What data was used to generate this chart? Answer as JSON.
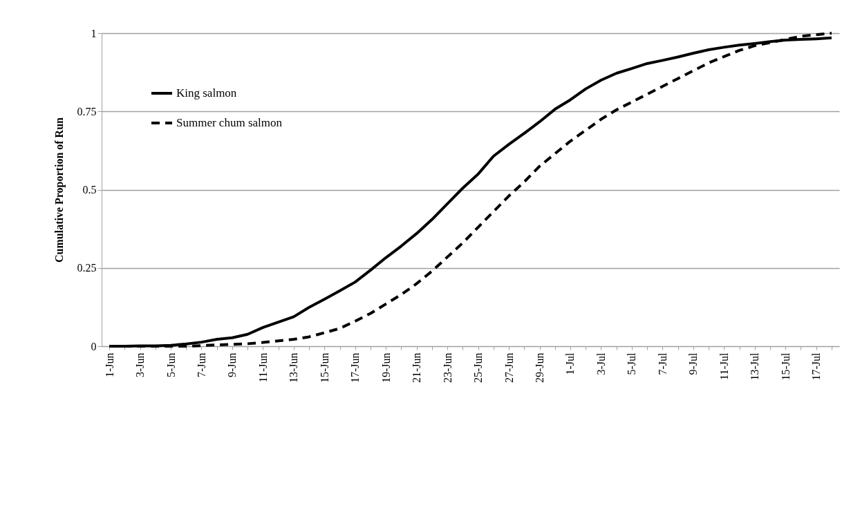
{
  "chart_data": {
    "type": "line",
    "ylabel": "Cumulative Proportion of Run",
    "categories": [
      "1-Jun",
      null,
      "3-Jun",
      null,
      "5-Jun",
      null,
      "7-Jun",
      null,
      "9-Jun",
      null,
      "11-Jun",
      null,
      "13-Jun",
      null,
      "15-Jun",
      null,
      "17-Jun",
      null,
      "19-Jun",
      null,
      "21-Jun",
      null,
      "23-Jun",
      null,
      "25-Jun",
      null,
      "27-Jun",
      null,
      "29-Jun",
      null,
      "1-Jul",
      null,
      "3-Jul",
      null,
      "5-Jul",
      null,
      "7-Jul",
      null,
      "9-Jul",
      null,
      "11-Jul",
      null,
      "13-Jul",
      null,
      "15-Jul",
      null,
      "17-Jul",
      null
    ],
    "series": [
      {
        "name": "King salmon",
        "color": "#000000",
        "line_style": "solid",
        "values": [
          0,
          0,
          0.001,
          0.001,
          0.003,
          0.007,
          0.013,
          0.022,
          0.027,
          0.038,
          0.06,
          0.077,
          0.094,
          0.124,
          0.15,
          0.177,
          0.205,
          0.243,
          0.283,
          0.32,
          0.36,
          0.405,
          0.455,
          0.505,
          0.55,
          0.607,
          0.645,
          0.68,
          0.717,
          0.757,
          0.787,
          0.822,
          0.85,
          0.872,
          0.887,
          0.903,
          0.913,
          0.924,
          0.936,
          0.947,
          0.955,
          0.962,
          0.967,
          0.973,
          0.978,
          0.98,
          0.982,
          0.985
        ]
      },
      {
        "name": "Summer chum salmon",
        "color": "#000000",
        "line_style": "dashed",
        "values": [
          0,
          0,
          0,
          0,
          0,
          0,
          0.002,
          0.004,
          0.006,
          0.008,
          0.012,
          0.017,
          0.022,
          0.03,
          0.043,
          0.057,
          0.08,
          0.105,
          0.135,
          0.165,
          0.2,
          0.24,
          0.285,
          0.33,
          0.38,
          0.43,
          0.48,
          0.525,
          0.575,
          0.615,
          0.655,
          0.69,
          0.725,
          0.755,
          0.78,
          0.805,
          0.83,
          0.855,
          0.88,
          0.905,
          0.925,
          0.945,
          0.96,
          0.97,
          0.98,
          0.99,
          0.995,
          1.0
        ]
      }
    ],
    "ylim": [
      0,
      1
    ],
    "yticks": [
      0,
      0.25,
      0.5,
      0.75,
      1
    ],
    "grid": "y",
    "legend": "top left"
  }
}
